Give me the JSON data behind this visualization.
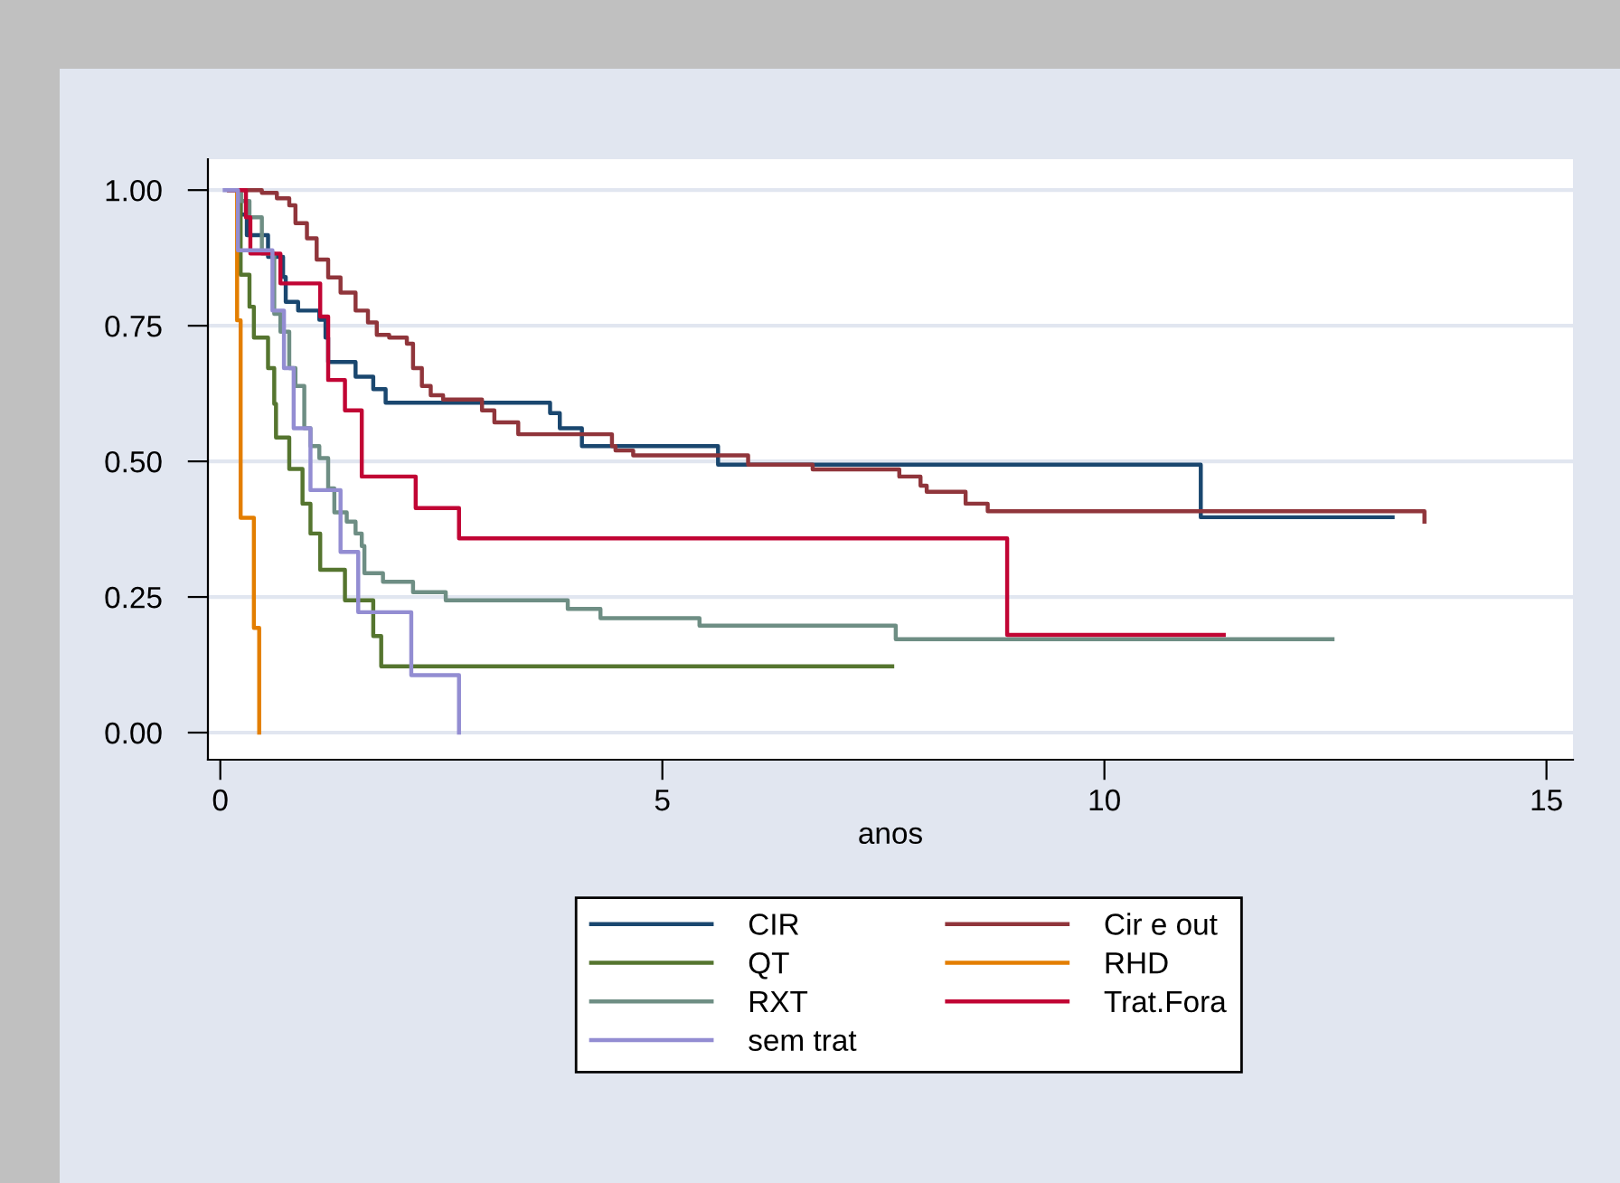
{
  "chart_data": {
    "type": "step",
    "xlabel": "anos",
    "xlim": [
      -0.14,
      15.3
    ],
    "ylim": [
      -0.05,
      1.057
    ],
    "xticks": [
      0,
      5,
      10,
      15
    ],
    "yticks": [
      {
        "value": 0,
        "label": "0.00"
      },
      {
        "value": 0.25,
        "label": "0.25"
      },
      {
        "value": 0.5,
        "label": "0.50"
      },
      {
        "value": 0.75,
        "label": "0.75"
      },
      {
        "value": 1,
        "label": "1.00"
      }
    ],
    "grid": "y",
    "legend": "bottom",
    "series": [
      {
        "name": "CIR",
        "color": "#1a476f",
        "x": [
          0.1,
          0.23,
          0.3,
          0.54,
          0.71,
          0.74,
          0.88,
          1.12,
          1.19,
          1.22,
          1.53,
          1.73,
          1.87,
          3.73,
          3.84,
          4.09,
          5.63,
          11.09,
          13.26
        ],
        "values": [
          1,
          0.955,
          0.917,
          0.877,
          0.84,
          0.794,
          0.778,
          0.761,
          0.728,
          0.683,
          0.656,
          0.633,
          0.608,
          0.589,
          0.561,
          0.528,
          0.494,
          0.397,
          0.397
        ]
      },
      {
        "name": "Cir e out",
        "color": "#90353b",
        "x": [
          0.2,
          0.47,
          0.64,
          0.78,
          0.85,
          0.98,
          1.09,
          1.22,
          1.36,
          1.53,
          1.67,
          1.77,
          1.91,
          2.11,
          2.18,
          2.28,
          2.38,
          2.52,
          2.96,
          3.1,
          3.37,
          4.43,
          4.47,
          4.67,
          5.97,
          6.7,
          7.68,
          7.92,
          7.99,
          8.43,
          8.68,
          13.62
        ],
        "values": [
          1,
          0.995,
          0.985,
          0.972,
          0.939,
          0.911,
          0.872,
          0.839,
          0.811,
          0.778,
          0.756,
          0.733,
          0.728,
          0.717,
          0.672,
          0.639,
          0.622,
          0.614,
          0.594,
          0.572,
          0.55,
          0.528,
          0.52,
          0.511,
          0.494,
          0.485,
          0.472,
          0.455,
          0.444,
          0.422,
          0.408,
          0.389
        ]
      },
      {
        "name": "QT",
        "color": "#55752f",
        "x": [
          0.1,
          0.23,
          0.33,
          0.38,
          0.54,
          0.61,
          0.63,
          0.78,
          0.93,
          1.02,
          1.13,
          1.41,
          1.73,
          1.82,
          7.6
        ],
        "values": [
          1,
          0.844,
          0.785,
          0.728,
          0.672,
          0.606,
          0.544,
          0.486,
          0.422,
          0.367,
          0.3,
          0.244,
          0.178,
          0.122,
          0.122
        ]
      },
      {
        "name": "RHD",
        "color": "#e37e00",
        "x": [
          0.1,
          0.19,
          0.23,
          0.38,
          0.44
        ],
        "values": [
          1,
          0.76,
          0.396,
          0.193,
          0
        ]
      },
      {
        "name": "RXT",
        "color": "#6e8e84",
        "x": [
          0.1,
          0.23,
          0.33,
          0.47,
          0.61,
          0.68,
          0.78,
          0.85,
          0.95,
          1.02,
          1.12,
          1.22,
          1.29,
          1.43,
          1.53,
          1.6,
          1.63,
          1.84,
          2.18,
          2.55,
          3.93,
          4.3,
          5.42,
          7.64,
          12.58
        ],
        "values": [
          1,
          0.98,
          0.95,
          0.883,
          0.772,
          0.739,
          0.672,
          0.639,
          0.561,
          0.528,
          0.506,
          0.45,
          0.406,
          0.389,
          0.367,
          0.344,
          0.294,
          0.278,
          0.259,
          0.244,
          0.228,
          0.211,
          0.197,
          0.172,
          0.172
        ]
      },
      {
        "name": "Trat.Fora",
        "color": "#c10534",
        "x": [
          0.1,
          0.29,
          0.34,
          0.68,
          1.13,
          1.22,
          1.41,
          1.6,
          2.21,
          2.7,
          8.9,
          11.35
        ],
        "values": [
          1,
          0.95,
          0.883,
          0.828,
          0.767,
          0.65,
          0.594,
          0.472,
          0.414,
          0.358,
          0.18,
          0.18
        ]
      },
      {
        "name": "sem trat",
        "color": "#938dd2",
        "x": [
          0.05,
          0.2,
          0.59,
          0.72,
          0.83,
          1.02,
          1.36,
          1.56,
          2.16,
          2.7
        ],
        "values": [
          1,
          0.889,
          0.778,
          0.672,
          0.561,
          0.447,
          0.333,
          0.222,
          0.106,
          0
        ]
      }
    ]
  }
}
